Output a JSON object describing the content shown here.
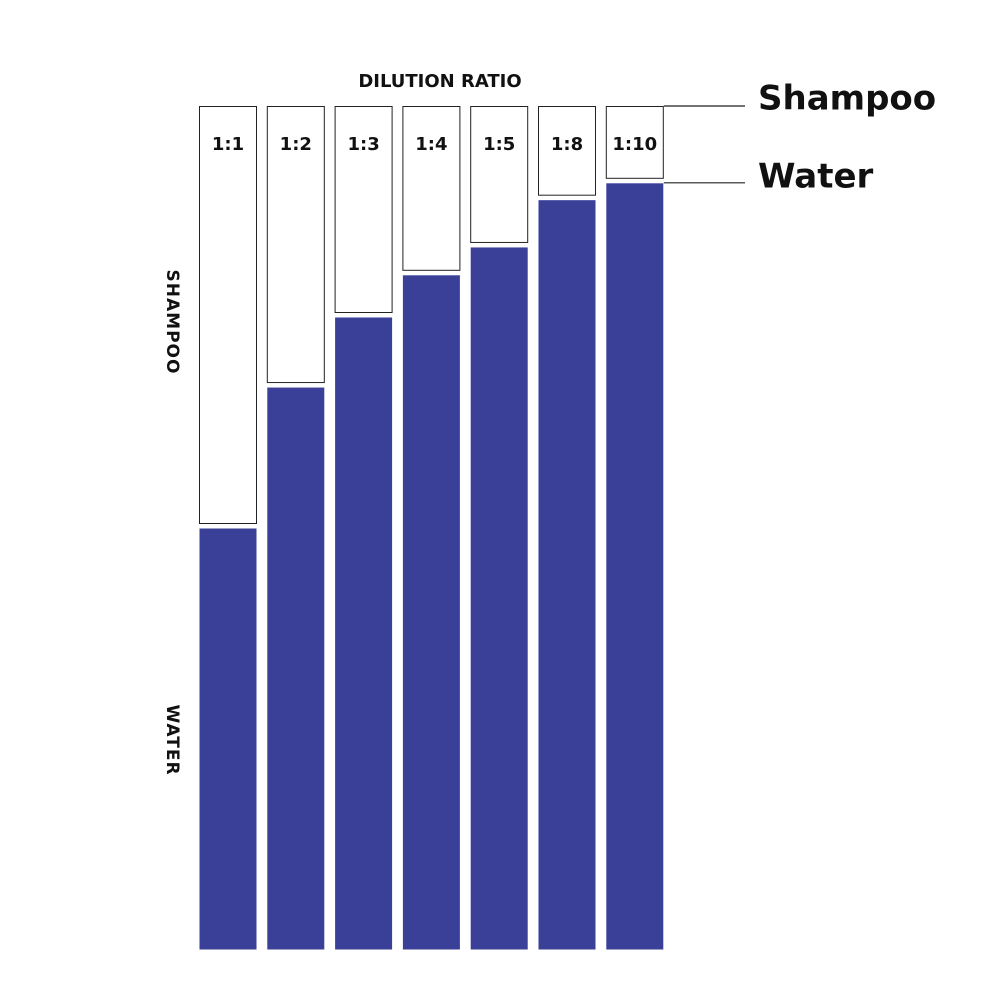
{
  "chart_data": {
    "type": "stacked_bar",
    "title": "DILUTION RATIO",
    "categories": [
      "1:1",
      "1:2",
      "1:3",
      "1:4",
      "1:5",
      "1:8",
      "1:10"
    ],
    "series": [
      {
        "name": "Water",
        "color": "#3a3f98",
        "values": [
          50,
          66.7,
          75,
          80,
          83.3,
          88.9,
          90.9
        ]
      },
      {
        "name": "Shampoo",
        "color": "#ffffff",
        "values": [
          50,
          33.3,
          25,
          20,
          16.7,
          11.1,
          9.1
        ]
      }
    ],
    "annotations": [
      "SHAMPOO",
      "WATER"
    ],
    "ylim": [
      0,
      100
    ]
  }
}
